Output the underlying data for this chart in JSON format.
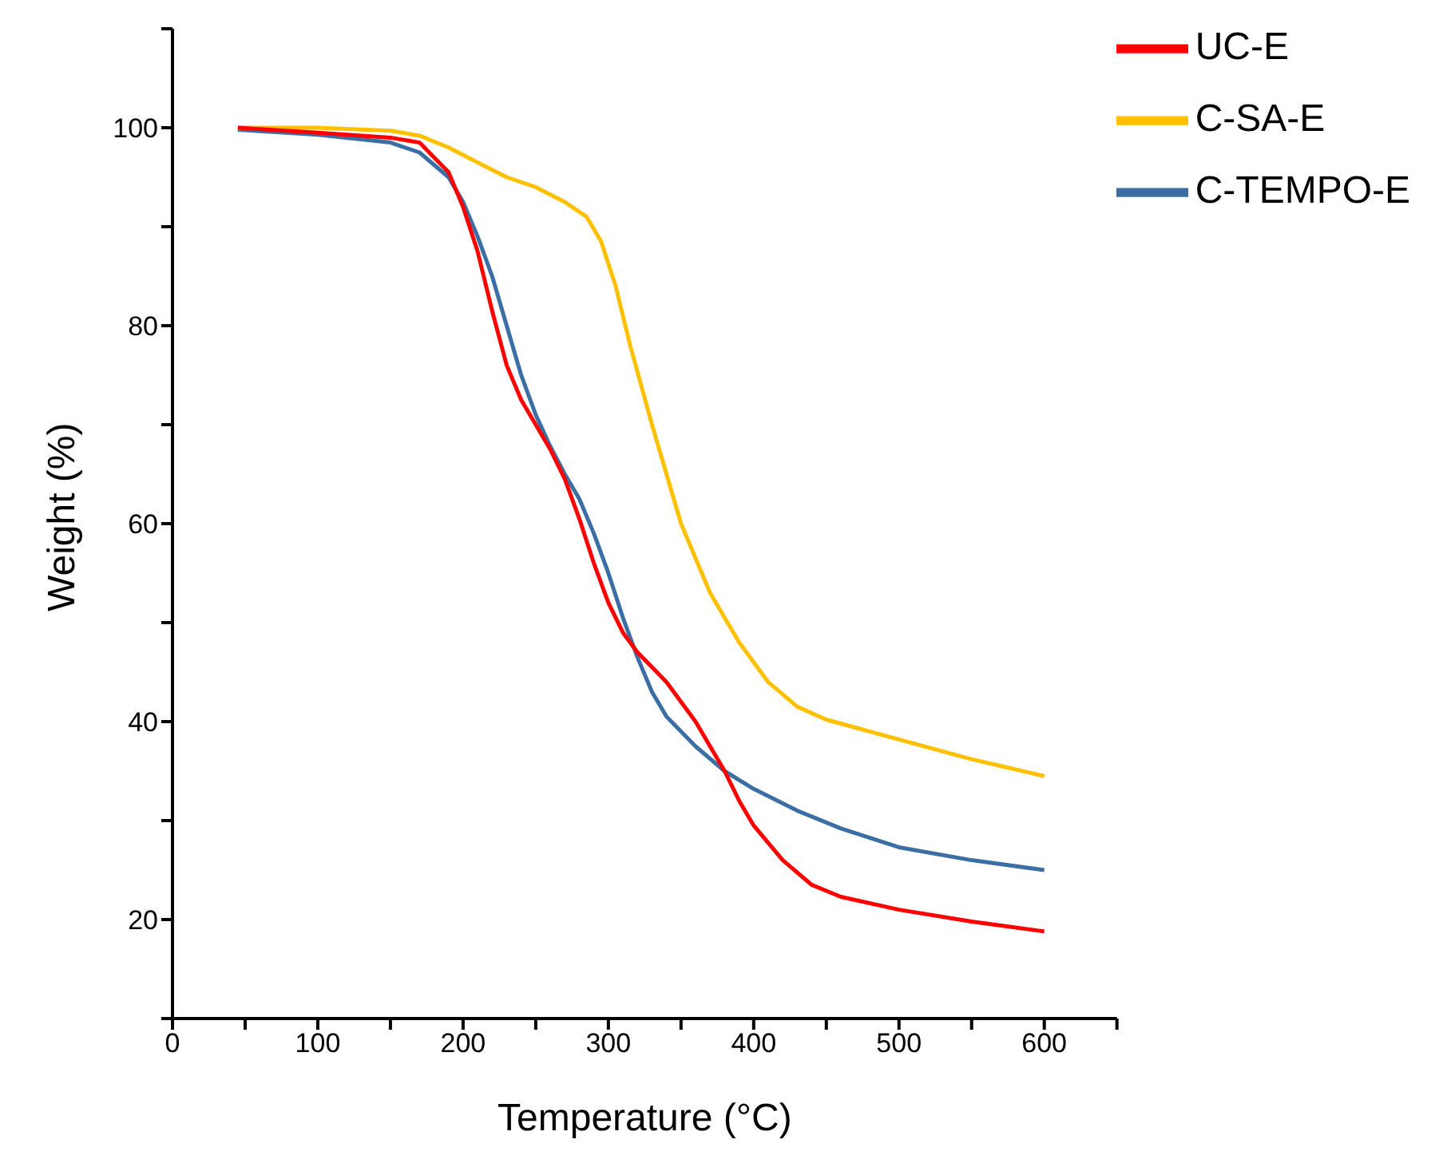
{
  "chart_data": {
    "type": "line",
    "xlabel": "Temperature (°C)",
    "ylabel": "Weight (%)",
    "xlim": [
      0,
      650
    ],
    "xticks": [
      0,
      {
        "value": 50,
        "label": null
      },
      100,
      {
        "value": 150,
        "label": null
      },
      200,
      {
        "value": 250,
        "label": null
      },
      300,
      {
        "value": 350,
        "label": null
      },
      400,
      {
        "value": 450,
        "label": null
      },
      500,
      {
        "value": 550,
        "label": null
      },
      600,
      {
        "value": 650,
        "label": null
      }
    ],
    "ylim": [
      10,
      110
    ],
    "yticks": [
      {
        "value": 10,
        "label": null
      },
      20,
      {
        "value": 30,
        "label": null
      },
      40,
      {
        "value": 50,
        "label": null
      },
      60,
      {
        "value": 70,
        "label": null
      },
      80,
      {
        "value": 90,
        "label": null
      },
      100,
      {
        "value": 110,
        "label": null
      }
    ],
    "grid": false,
    "legend": "top right",
    "marker": "none",
    "line_style": "solid",
    "series": [
      {
        "name": "UC-E",
        "color": "#ff0000",
        "x": [
          45,
          100,
          150,
          170,
          190,
          200,
          210,
          220,
          230,
          240,
          250,
          260,
          270,
          280,
          290,
          300,
          310,
          320,
          330,
          340,
          350,
          360,
          370,
          380,
          390,
          400,
          420,
          440,
          460,
          500,
          550,
          600
        ],
        "values": [
          100,
          99.5,
          99,
          98.5,
          95.5,
          92,
          87.5,
          81.5,
          76,
          72.5,
          70,
          67.5,
          64.5,
          60.5,
          56,
          52,
          49,
          47,
          45.5,
          44,
          42,
          40,
          37.5,
          35,
          32,
          29.5,
          26,
          23.5,
          22.3,
          21,
          19.8,
          18.8
        ]
      },
      {
        "name": "C-SA-E",
        "color": "#ffc000",
        "x": [
          45,
          100,
          150,
          170,
          190,
          210,
          230,
          250,
          270,
          285,
          295,
          305,
          315,
          330,
          350,
          370,
          390,
          410,
          430,
          450,
          500,
          550,
          600
        ],
        "values": [
          100,
          100,
          99.7,
          99.2,
          98,
          96.5,
          95,
          94,
          92.5,
          91,
          88.5,
          84,
          78,
          70,
          60,
          53,
          48,
          44,
          41.5,
          40.2,
          38.2,
          36.2,
          34.5
        ]
      },
      {
        "name": "C-TEMPO-E",
        "color": "#3a6ea5",
        "x": [
          45,
          100,
          150,
          170,
          190,
          200,
          210,
          220,
          230,
          240,
          250,
          260,
          270,
          280,
          290,
          300,
          310,
          320,
          330,
          340,
          360,
          380,
          400,
          430,
          460,
          500,
          550,
          600
        ],
        "values": [
          99.8,
          99.3,
          98.5,
          97.5,
          95,
          92.5,
          89,
          85,
          80,
          75,
          71,
          67.8,
          65,
          62.5,
          59,
          55,
          50.5,
          46.5,
          43,
          40.5,
          37.5,
          35,
          33.2,
          31,
          29.2,
          27.3,
          26,
          25
        ]
      }
    ]
  }
}
